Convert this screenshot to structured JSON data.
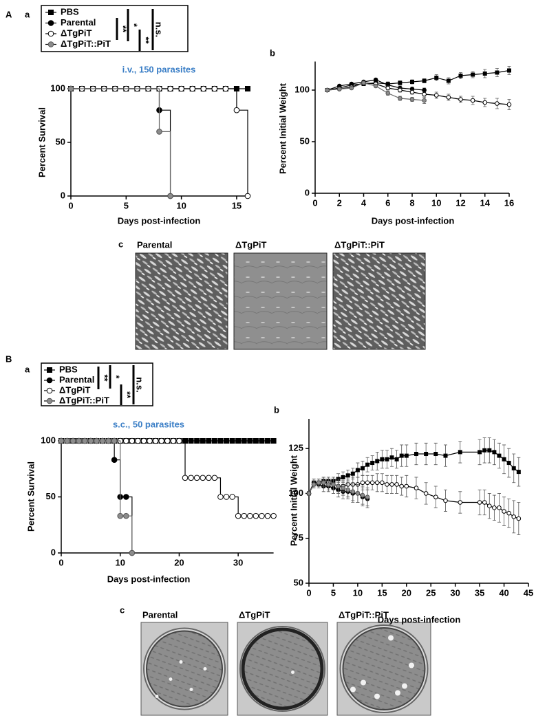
{
  "panels": [
    {
      "label": "A",
      "subpanels": [
        "a",
        "b",
        "c"
      ],
      "image_labels": [
        "Parental",
        "ΔTgPiT",
        "ΔTgPiT::PiT"
      ]
    },
    {
      "label": "B",
      "subpanels": [
        "a",
        "b",
        "c"
      ],
      "image_labels": [
        "Parental",
        "ΔTgPiT",
        "ΔTgPiT::PiT"
      ]
    }
  ],
  "chart_data": [
    {
      "type": "step",
      "title": "i.v., 150 parasites",
      "title_color": "#3a7ec6",
      "x_label": "Days post-infection",
      "y_label": "Percent Survival",
      "xlim": [
        0,
        16
      ],
      "ylim": [
        0,
        100
      ],
      "xticks": [
        0,
        5,
        10,
        15
      ],
      "yticks": [
        0,
        50,
        100
      ],
      "legend": true,
      "significance": [
        "**",
        "*",
        "**",
        "n.s."
      ],
      "series": [
        {
          "name": "PBS",
          "color": "#000000",
          "marker": "square",
          "x": [
            0,
            1,
            2,
            3,
            4,
            5,
            6,
            7,
            8,
            9,
            10,
            11,
            12,
            13,
            14,
            15,
            16
          ],
          "values": [
            100,
            100,
            100,
            100,
            100,
            100,
            100,
            100,
            100,
            100,
            100,
            100,
            100,
            100,
            100,
            100,
            100
          ]
        },
        {
          "name": "Parental",
          "color": "#000000",
          "marker": "circle",
          "x": [
            0,
            8,
            9
          ],
          "values": [
            100,
            80,
            0
          ]
        },
        {
          "name": "ΔTgPiT",
          "color": "#ffffff",
          "marker": "circle",
          "x": [
            0,
            1,
            2,
            3,
            4,
            5,
            6,
            7,
            8,
            9,
            10,
            11,
            12,
            13,
            14,
            15,
            16
          ],
          "values": [
            100,
            100,
            100,
            100,
            100,
            100,
            100,
            100,
            100,
            100,
            100,
            100,
            100,
            100,
            100,
            80,
            0
          ]
        },
        {
          "name": "ΔTgPiT::PiT",
          "color": "#8c8c8c",
          "marker": "circle",
          "x": [
            0,
            8,
            9
          ],
          "values": [
            100,
            60,
            0
          ]
        }
      ]
    },
    {
      "type": "line",
      "x_label": "Days post-infection",
      "y_label": "Percent Initial Weight",
      "xlim": [
        0,
        16
      ],
      "ylim": [
        0,
        125
      ],
      "xticks": [
        0,
        2,
        4,
        6,
        8,
        10,
        12,
        14,
        16
      ],
      "yticks": [
        0,
        50,
        100
      ],
      "series": [
        {
          "color": "#000000",
          "marker": "square",
          "x": [
            1,
            2,
            3,
            4,
            5,
            6,
            7,
            8,
            9,
            10,
            11,
            12,
            13,
            14,
            15,
            16
          ],
          "values": [
            100,
            102,
            105,
            106,
            107,
            106,
            107,
            108,
            109,
            112,
            109,
            114,
            115,
            116,
            117,
            119
          ],
          "errors": [
            0,
            1,
            1,
            1,
            1,
            2,
            2,
            2,
            2,
            3,
            3,
            3,
            3,
            4,
            4,
            4
          ]
        },
        {
          "color": "#000000",
          "marker": "circle",
          "x": [
            1,
            2,
            3,
            4,
            5,
            6,
            7,
            8,
            9
          ],
          "values": [
            100,
            104,
            106,
            108,
            110,
            105,
            102,
            101,
            100
          ],
          "errors": [
            0,
            1,
            1,
            1,
            1,
            2,
            2,
            2,
            2
          ]
        },
        {
          "color": "#ffffff",
          "marker": "circle",
          "x": [
            1,
            2,
            3,
            4,
            5,
            6,
            7,
            8,
            9,
            10,
            11,
            12,
            13,
            14,
            15,
            16
          ],
          "values": [
            100,
            101,
            103,
            107,
            106,
            102,
            100,
            98,
            96,
            95,
            93,
            91,
            90,
            88,
            87,
            86
          ],
          "errors": [
            0,
            1,
            1,
            1,
            1,
            2,
            2,
            2,
            2,
            3,
            3,
            3,
            4,
            4,
            5,
            5
          ]
        },
        {
          "color": "#8c8c8c",
          "marker": "circle",
          "x": [
            1,
            2,
            3,
            4,
            5,
            6,
            7,
            8,
            9
          ],
          "values": [
            100,
            101,
            102,
            107,
            104,
            97,
            92,
            91,
            90
          ],
          "errors": [
            0,
            1,
            1,
            1,
            1,
            2,
            2,
            2,
            3
          ]
        }
      ]
    },
    {
      "type": "step",
      "title": "s.c., 50 parasites",
      "title_color": "#3a7ec6",
      "x_label": "Days post-infection",
      "y_label": "Percent Survival",
      "xlim": [
        0,
        36
      ],
      "ylim": [
        0,
        100
      ],
      "xticks": [
        0,
        10,
        20,
        30
      ],
      "yticks": [
        0,
        50,
        100
      ],
      "legend": true,
      "significance": [
        "**",
        "*",
        "**",
        "n.s."
      ],
      "series": [
        {
          "name": "PBS",
          "color": "#000000",
          "marker": "square",
          "x": [
            0,
            1,
            2,
            3,
            4,
            5,
            6,
            7,
            8,
            9,
            10,
            11,
            12,
            13,
            14,
            15,
            16,
            17,
            18,
            19,
            20,
            21,
            22,
            23,
            24,
            25,
            26,
            27,
            28,
            29,
            30,
            31,
            32,
            33,
            34,
            35,
            36
          ],
          "values": [
            100,
            100,
            100,
            100,
            100,
            100,
            100,
            100,
            100,
            100,
            100,
            100,
            100,
            100,
            100,
            100,
            100,
            100,
            100,
            100,
            100,
            100,
            100,
            100,
            100,
            100,
            100,
            100,
            100,
            100,
            100,
            100,
            100,
            100,
            100,
            100,
            100
          ]
        },
        {
          "name": "Parental",
          "color": "#000000",
          "marker": "circle",
          "x": [
            0,
            9,
            10,
            11,
            12
          ],
          "values": [
            100,
            83,
            50,
            50,
            0
          ]
        },
        {
          "name": "ΔTgPiT",
          "color": "#ffffff",
          "marker": "circle",
          "x": [
            0,
            1,
            2,
            3,
            4,
            5,
            6,
            7,
            8,
            9,
            10,
            11,
            12,
            13,
            14,
            15,
            16,
            17,
            18,
            19,
            20,
            21,
            22,
            23,
            24,
            25,
            26,
            27,
            28,
            29,
            30,
            31,
            32,
            33,
            34,
            35,
            36
          ],
          "values": [
            100,
            100,
            100,
            100,
            100,
            100,
            100,
            100,
            100,
            100,
            100,
            100,
            100,
            100,
            100,
            100,
            100,
            100,
            100,
            100,
            100,
            67,
            67,
            67,
            67,
            67,
            67,
            50,
            50,
            50,
            33,
            33,
            33,
            33,
            33,
            33,
            33
          ]
        },
        {
          "name": "ΔTgPiT::PiT",
          "color": "#8c8c8c",
          "marker": "circle",
          "x": [
            0,
            1,
            2,
            3,
            4,
            5,
            6,
            7,
            8,
            9,
            10,
            11,
            12
          ],
          "values": [
            100,
            100,
            100,
            100,
            100,
            100,
            100,
            100,
            100,
            100,
            33,
            33,
            0
          ]
        }
      ]
    },
    {
      "type": "line",
      "x_label": "Days post-infection",
      "y_label": "Percent Initial Weight",
      "xlim": [
        0,
        45
      ],
      "ylim": [
        50,
        140
      ],
      "xticks": [
        0,
        5,
        10,
        15,
        20,
        25,
        30,
        35,
        40,
        45
      ],
      "yticks": [
        50,
        75,
        100,
        125
      ],
      "series": [
        {
          "color": "#000000",
          "marker": "square",
          "x": [
            0,
            1,
            2,
            3,
            4,
            5,
            6,
            7,
            8,
            9,
            10,
            11,
            12,
            13,
            14,
            15,
            16,
            17,
            18,
            19,
            20,
            22,
            24,
            26,
            28,
            31,
            35,
            36,
            37,
            38,
            39,
            40,
            41,
            42,
            43
          ],
          "values": [
            100,
            106,
            106,
            107,
            107,
            107,
            108,
            109,
            110,
            111,
            113,
            114,
            116,
            117,
            118,
            119,
            119,
            120,
            119,
            121,
            121,
            122,
            122,
            122,
            121,
            123,
            123,
            124,
            124,
            123,
            121,
            119,
            117,
            114,
            112
          ],
          "errors": [
            0,
            2,
            2,
            2,
            2,
            2,
            3,
            3,
            3,
            3,
            4,
            4,
            4,
            4,
            5,
            5,
            5,
            5,
            5,
            6,
            6,
            6,
            6,
            6,
            6,
            6,
            7,
            7,
            7,
            7,
            7,
            8,
            8,
            8,
            8
          ]
        },
        {
          "color": "#000000",
          "marker": "circle",
          "x": [
            0,
            1,
            2,
            3,
            4,
            5,
            6,
            7,
            8,
            9,
            10,
            11,
            12
          ],
          "values": [
            100,
            106,
            105,
            104,
            104,
            103,
            102,
            101,
            101,
            100,
            100,
            98,
            97
          ],
          "errors": [
            0,
            2,
            2,
            3,
            3,
            3,
            4,
            4,
            4,
            5,
            5,
            5,
            5
          ]
        },
        {
          "color": "#ffffff",
          "marker": "circle",
          "x": [
            0,
            1,
            2,
            3,
            4,
            5,
            6,
            7,
            8,
            9,
            10,
            11,
            12,
            13,
            14,
            15,
            16,
            17,
            18,
            19,
            20,
            22,
            24,
            26,
            28,
            31,
            35,
            36,
            37,
            38,
            39,
            40,
            41,
            42,
            43
          ],
          "values": [
            100,
            105,
            106,
            106,
            106,
            105,
            104,
            104,
            105,
            105,
            105,
            106,
            106,
            106,
            106,
            106,
            105,
            105,
            105,
            104,
            104,
            103,
            100,
            98,
            96,
            95,
            95,
            95,
            93,
            92,
            92,
            90,
            89,
            87,
            86
          ],
          "errors": [
            0,
            2,
            2,
            2,
            2,
            3,
            3,
            3,
            3,
            4,
            4,
            4,
            4,
            4,
            5,
            5,
            5,
            5,
            5,
            5,
            6,
            6,
            6,
            6,
            6,
            6,
            7,
            7,
            7,
            7,
            8,
            8,
            8,
            9,
            9
          ]
        },
        {
          "color": "#8c8c8c",
          "marker": "circle",
          "x": [
            0,
            1,
            2,
            3,
            4,
            5,
            6,
            7,
            8,
            9,
            10,
            11,
            12
          ],
          "values": [
            100,
            105,
            106,
            106,
            105,
            105,
            104,
            103,
            102,
            101,
            100,
            99,
            98
          ],
          "errors": [
            0,
            2,
            2,
            3,
            3,
            3,
            4,
            4,
            4,
            5,
            5,
            5,
            5
          ]
        }
      ]
    }
  ]
}
